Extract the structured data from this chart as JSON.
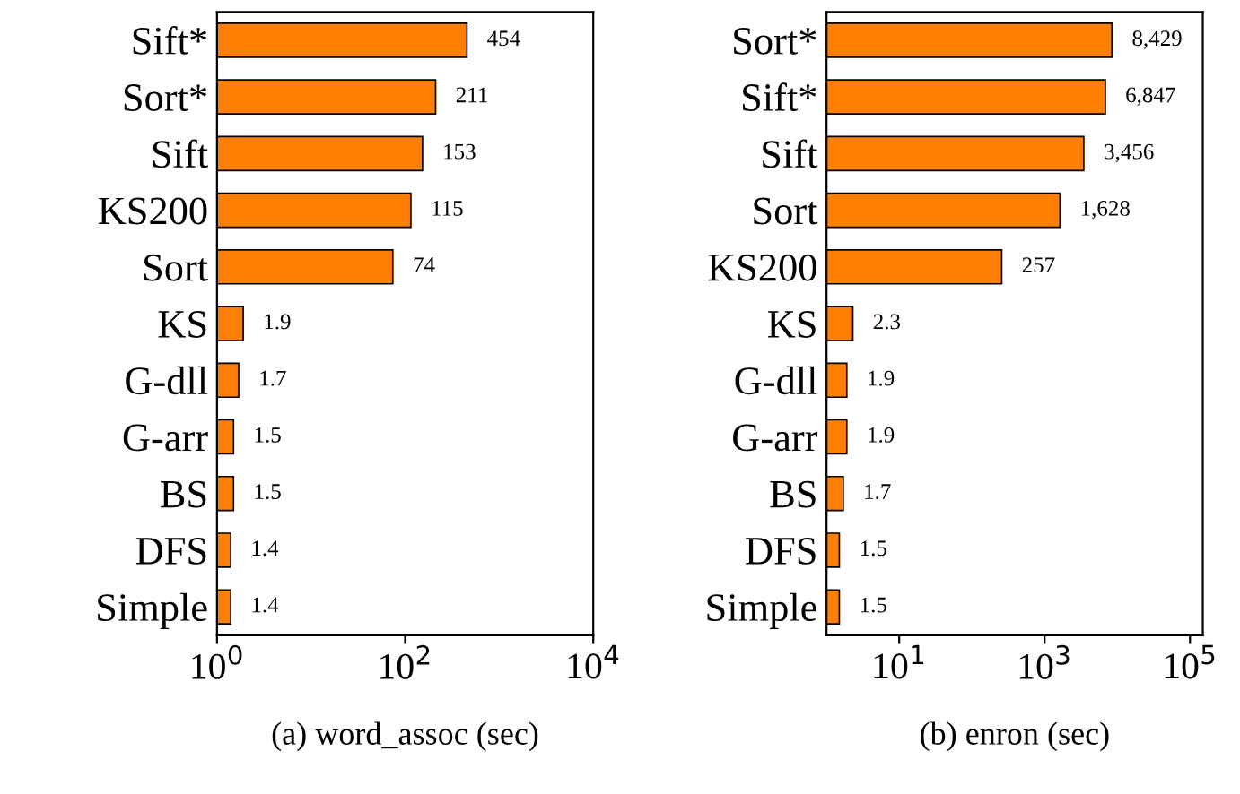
{
  "chart_data": [
    {
      "type": "bar",
      "orientation": "horizontal",
      "log": "x",
      "xlabel": "(a) word_assoc (sec)",
      "categories": [
        "Sift*",
        "Sort*",
        "Sift",
        "KS200",
        "Sort",
        "KS",
        "G-dll",
        "G-arr",
        "BS",
        "DFS",
        "Simple"
      ],
      "values": [
        454,
        211,
        153,
        115,
        74,
        1.9,
        1.7,
        1.5,
        1.5,
        1.4,
        1.4
      ],
      "color": "#ff8000",
      "data_labels": true,
      "xlim": [
        1,
        10000
      ],
      "xticks": [
        {
          "value": 1,
          "label": "10$^{0}$"
        },
        {
          "value": 100,
          "label": "10$^{2}$"
        },
        {
          "value": 10000,
          "label": "10$^{4}$"
        }
      ]
    },
    {
      "type": "bar",
      "orientation": "horizontal",
      "log": "x",
      "xlabel": "(b) enron (sec)",
      "categories": [
        "Sort*",
        "Sift*",
        "Sift",
        "Sort",
        "KS200",
        "KS",
        "G-dll",
        "G-arr",
        "BS",
        "DFS",
        "Simple"
      ],
      "values": [
        8429,
        6847,
        3456,
        1628,
        257,
        2.3,
        1.9,
        1.9,
        1.7,
        1.5,
        1.5
      ],
      "value_labels": [
        "8,429",
        "6,847",
        "3,456",
        "1,628",
        "257",
        "2.3",
        "1.9",
        "1.9",
        "1.7",
        "1.5",
        "1.5"
      ],
      "color": "#ff8000",
      "xlim": [
        1,
        150000
      ],
      "xticks": [
        {
          "value": 10,
          "label": "10$^{1}$"
        },
        {
          "value": 1000,
          "label": "10$^{3}$"
        },
        {
          "value": 100000,
          "label": "10$^{5}$"
        }
      ]
    }
  ]
}
